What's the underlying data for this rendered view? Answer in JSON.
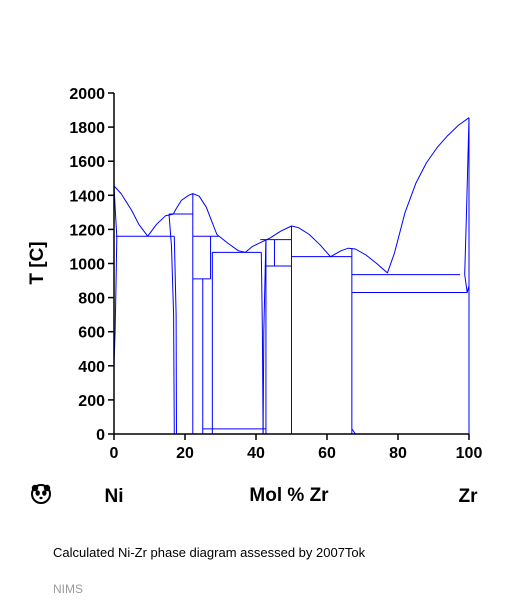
{
  "chart_data": {
    "type": "phase-diagram",
    "xlabel": "Mol % Zr",
    "ylabel": "T [C]",
    "xlim": [
      0,
      100
    ],
    "ylim": [
      0,
      2000
    ],
    "x_ticks": [
      "0",
      "20",
      "40",
      "60",
      "80",
      "100"
    ],
    "y_ticks": [
      "0",
      "200",
      "400",
      "600",
      "800",
      "1000",
      "1200",
      "1400",
      "1600",
      "1800",
      "2000"
    ],
    "left_component": "Ni",
    "right_component": "Zr",
    "line_color": "#0000ff",
    "liquidus": [
      [
        0,
        1455
      ],
      [
        2,
        1410
      ],
      [
        5,
        1310
      ],
      [
        7,
        1230
      ],
      [
        9.5,
        1160
      ],
      [
        12,
        1230
      ],
      [
        14.5,
        1280
      ],
      [
        16.7,
        1290
      ],
      [
        17.5,
        1320
      ],
      [
        19,
        1370
      ],
      [
        21,
        1400
      ],
      [
        22.2,
        1410
      ],
      [
        24,
        1395
      ],
      [
        26,
        1330
      ],
      [
        27.5,
        1250
      ],
      [
        29,
        1170
      ],
      [
        32,
        1120
      ],
      [
        35,
        1075
      ],
      [
        37,
        1065
      ],
      [
        39,
        1100
      ],
      [
        42,
        1130
      ],
      [
        44,
        1150
      ],
      [
        47,
        1190
      ],
      [
        50,
        1220
      ],
      [
        52,
        1210
      ],
      [
        55,
        1170
      ],
      [
        58,
        1110
      ],
      [
        61,
        1040
      ],
      [
        64,
        1075
      ],
      [
        66,
        1090
      ],
      [
        68,
        1085
      ],
      [
        71,
        1050
      ],
      [
        74,
        1000
      ],
      [
        77,
        945
      ],
      [
        79,
        1060
      ],
      [
        82,
        1300
      ],
      [
        85,
        1470
      ],
      [
        88,
        1590
      ],
      [
        91,
        1680
      ],
      [
        94,
        1750
      ],
      [
        97,
        1810
      ],
      [
        100,
        1855
      ]
    ],
    "horizontal_lines": [
      {
        "x1": 0.5,
        "x2": 17,
        "t": 1160
      },
      {
        "x1": 15.5,
        "x2": 22.2,
        "t": 1290
      },
      {
        "x1": 22.2,
        "x2": 29.5,
        "t": 1160
      },
      {
        "x1": 22.2,
        "x2": 27.2,
        "t": 910
      },
      {
        "x1": 27.7,
        "x2": 41.5,
        "t": 1065
      },
      {
        "x1": 41.2,
        "x2": 50,
        "t": 1140
      },
      {
        "x1": 42.5,
        "x2": 50,
        "t": 985
      },
      {
        "x1": 50,
        "x2": 67,
        "t": 1040
      },
      {
        "x1": 67,
        "x2": 97.5,
        "t": 935
      },
      {
        "x1": 67,
        "x2": 99.5,
        "t": 830
      },
      {
        "x1": 25,
        "x2": 42.8,
        "t": 30
      }
    ],
    "vertical_lines": [
      {
        "x": 22.2,
        "t1": 0,
        "t2": 1410
      },
      {
        "x": 25,
        "t1": 0,
        "t2": 910
      },
      {
        "x": 27.2,
        "t1": 910,
        "t2": 1160
      },
      {
        "x": 27.7,
        "t1": 0,
        "t2": 1065
      },
      {
        "x": 42.8,
        "t1": 0,
        "t2": 1140
      },
      {
        "x": 45.2,
        "t1": 985,
        "t2": 1140
      },
      {
        "x": 50,
        "t1": 0,
        "t2": 1220
      },
      {
        "x": 67,
        "t1": 0,
        "t2": 1090
      }
    ],
    "solvus_curves": [
      [
        [
          0,
          1455
        ],
        [
          0.4,
          1300
        ],
        [
          0.8,
          1160
        ],
        [
          0.6,
          900
        ],
        [
          0.3,
          600
        ],
        [
          0,
          400
        ]
      ],
      [
        [
          15.5,
          1290
        ],
        [
          16.2,
          1100
        ],
        [
          16.8,
          700
        ],
        [
          17,
          0
        ]
      ],
      [
        [
          17,
          1160
        ],
        [
          17.5,
          700
        ],
        [
          17.6,
          0
        ]
      ],
      [
        [
          41.5,
          1065
        ],
        [
          41.8,
          600
        ],
        [
          42,
          0
        ]
      ],
      [
        [
          42.8,
          1140
        ],
        [
          42.2,
          600
        ],
        [
          42,
          0
        ]
      ],
      [
        [
          100,
          1855
        ],
        [
          99.3,
          1300
        ],
        [
          98.8,
          935
        ],
        [
          99.5,
          830
        ],
        [
          100,
          870
        ]
      ],
      [
        [
          100,
          870
        ],
        [
          100,
          660
        ]
      ],
      [
        [
          67,
          30
        ],
        [
          68,
          0
        ]
      ]
    ]
  },
  "footer": {
    "caption": "Calculated Ni-Zr phase diagram assessed by 2007Tok",
    "source": "NIMS"
  }
}
